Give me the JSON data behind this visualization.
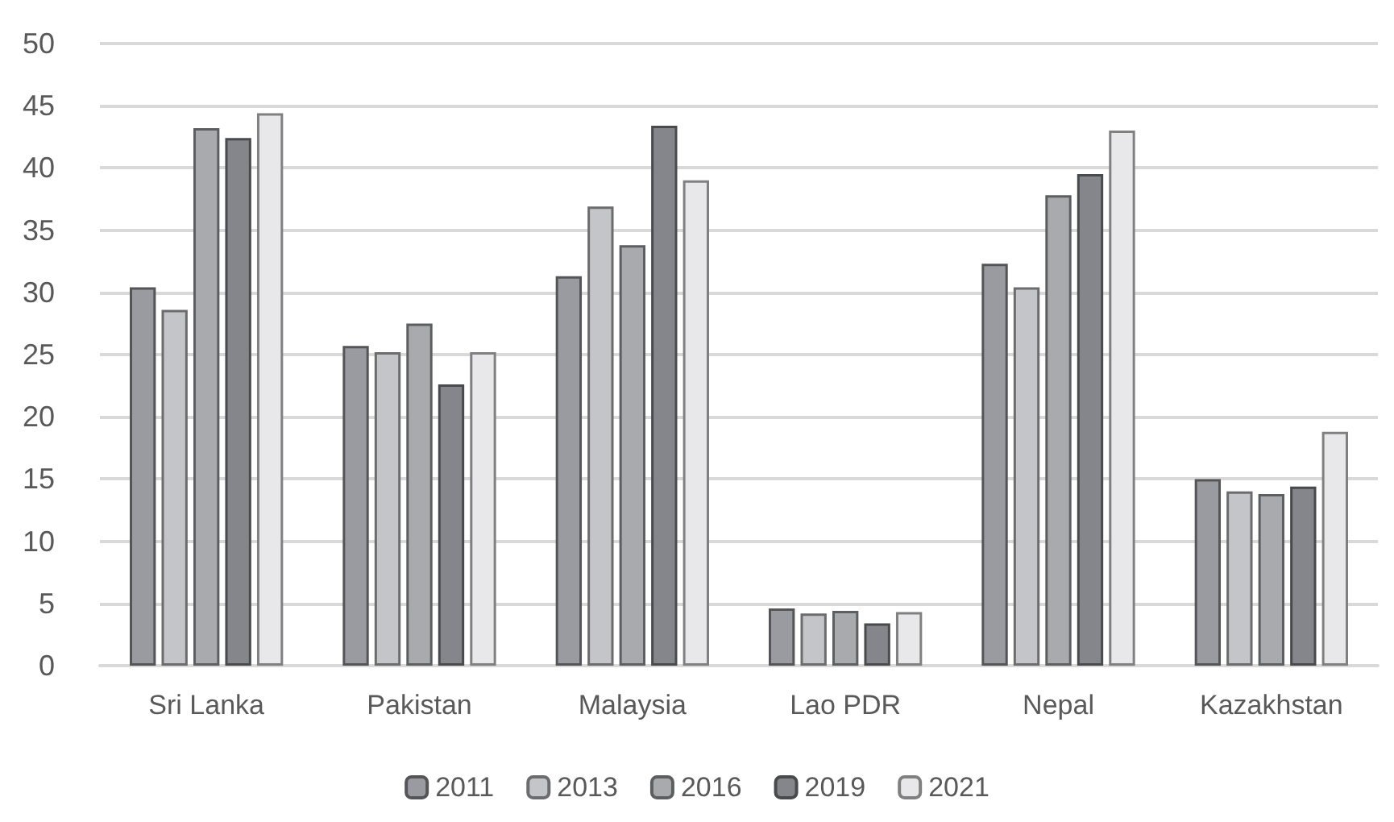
{
  "chart_data": {
    "type": "bar",
    "categories": [
      "Sri Lanka",
      "Pakistan",
      "Malaysia",
      "Lao PDR",
      "Nepal",
      "Kazakhstan"
    ],
    "series": [
      {
        "name": "2011",
        "color": "#9a9ba0",
        "values": [
          30.4,
          25.7,
          31.3,
          4.6,
          32.3,
          15.0
        ]
      },
      {
        "name": "2013",
        "color": "#c4c5c8",
        "values": [
          28.6,
          25.2,
          36.9,
          4.2,
          30.4,
          14.0
        ]
      },
      {
        "name": "2016",
        "color": "#a9aaae",
        "values": [
          43.2,
          27.5,
          33.8,
          4.4,
          37.8,
          13.8
        ]
      },
      {
        "name": "2019",
        "color": "#85868b",
        "values": [
          42.4,
          22.6,
          43.4,
          3.4,
          39.5,
          14.4
        ]
      },
      {
        "name": "2021",
        "color": "#e8e8ea",
        "values": [
          44.4,
          25.2,
          39.0,
          4.3,
          43.0,
          18.8
        ]
      }
    ],
    "ylim": [
      0,
      50
    ],
    "yticks": [
      0,
      5,
      10,
      15,
      20,
      25,
      30,
      35,
      40,
      45,
      50
    ],
    "grid": "y",
    "legend": "bottom"
  }
}
